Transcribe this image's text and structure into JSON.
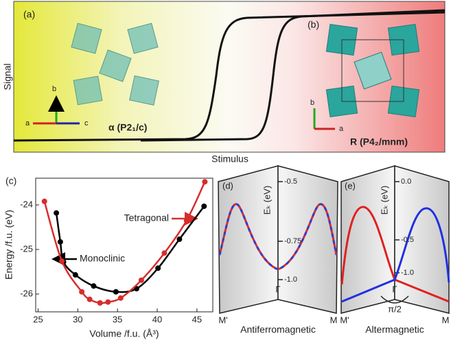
{
  "panel_top": {
    "label_a": "(a)",
    "label_b": "(b)",
    "y_label": "Signal",
    "x_label": "Stimulus",
    "phase_alpha": "α (P2₁/c)",
    "phase_r": "R (P4₂/mnm)",
    "axes_a": [
      "b",
      "a",
      "c"
    ],
    "axes_b": [
      "b",
      "a"
    ]
  },
  "chart_data": {
    "type": "scatter",
    "label": "(c)",
    "xlabel": "Volume /f.u. (Å³)",
    "ylabel": "Energy /f.u. (eV)",
    "xlim": [
      24.7,
      47
    ],
    "ylim": [
      -26.4,
      -23.4
    ],
    "xticks": [
      25,
      30,
      35,
      40,
      45
    ],
    "yticks": [
      -24,
      -25,
      -26
    ],
    "series": [
      {
        "name": "Monoclinic",
        "color": "#000000",
        "x": [
          27.3,
          27.8,
          28.2,
          29.7,
          32.0,
          34.8,
          37.4,
          40.1,
          42.8,
          45.9
        ],
        "values": [
          -24.18,
          -24.83,
          -25.28,
          -25.57,
          -25.82,
          -25.95,
          -25.88,
          -25.42,
          -24.77,
          -24.03
        ]
      },
      {
        "name": "Tetragonal",
        "color": "#d62d2d",
        "x": [
          25.8,
          28.0,
          30.5,
          31.5,
          32.8,
          33.8,
          35.4,
          38.0,
          40.9,
          43.7,
          46.0
        ],
        "values": [
          -23.92,
          -25.26,
          -25.95,
          -26.12,
          -26.2,
          -26.18,
          -26.09,
          -25.69,
          -25.08,
          -24.35,
          -23.48
        ]
      }
    ]
  },
  "panel_d": {
    "label": "(d)",
    "axis_label": "Eₖ (eV)",
    "ticks": [
      "-0.5",
      "-0.75",
      "-1.0"
    ],
    "center": "Γ",
    "left": "M'",
    "right": "M",
    "caption": "Antiferromagnetic"
  },
  "panel_e": {
    "label": "(e)",
    "axis_label": "Eₖ (eV)",
    "ticks": [
      "0.0",
      "-0.5",
      "-1.0"
    ],
    "center": "Γ",
    "angle": "π/2",
    "left": "M'",
    "right": "M",
    "caption": "Altermagnetic"
  }
}
